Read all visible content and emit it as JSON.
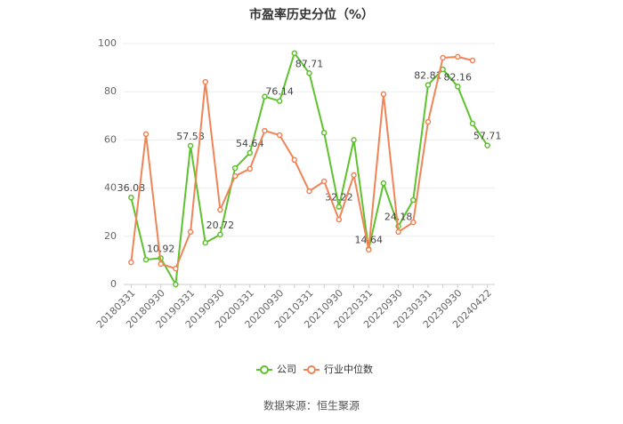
{
  "chart_data": {
    "type": "line",
    "title": "市盈率历史分位（%）",
    "categories": [
      "20180331",
      null,
      "20180930",
      null,
      "20190331",
      null,
      "20190930",
      null,
      "20200331",
      null,
      "20200930",
      null,
      "20210331",
      null,
      "20210930",
      null,
      "20220331",
      null,
      "20220930",
      null,
      "20230331",
      null,
      "20230930",
      null,
      "20240422"
    ],
    "series": [
      {
        "name": "公司",
        "color": "#5ec12d",
        "values": [
          36.08,
          10.3,
          10.92,
          0,
          57.58,
          17.3,
          20.72,
          48.3,
          54.64,
          78,
          76.14,
          96,
          87.71,
          63,
          32.22,
          60,
          14.64,
          42,
          24.18,
          35,
          82.81,
          89.3,
          82.16,
          66.8,
          57.71
        ],
        "value_labels": [
          "36.08",
          null,
          "10.92",
          null,
          "57.58",
          null,
          "20.72",
          null,
          "54.64",
          null,
          "76.14",
          null,
          "87.71",
          null,
          "32.22",
          null,
          "14.64",
          null,
          "24.18",
          null,
          "82.81",
          null,
          "82.16",
          null,
          "57.71"
        ]
      },
      {
        "name": "行业中位数",
        "color": "#f08456",
        "values": [
          9.2,
          62.4,
          8.5,
          6.6,
          21.8,
          84.1,
          31,
          45,
          48,
          63.8,
          62,
          51.7,
          38.7,
          42.8,
          26.9,
          45.4,
          14.4,
          79,
          21.8,
          25.8,
          67.5,
          94.1,
          94.5,
          93,
          null
        ]
      }
    ],
    "ylim": [
      0,
      100
    ],
    "yticks": [
      0,
      20,
      40,
      60,
      80,
      100
    ],
    "grid": true,
    "source": "数据来源：恒生聚源"
  }
}
